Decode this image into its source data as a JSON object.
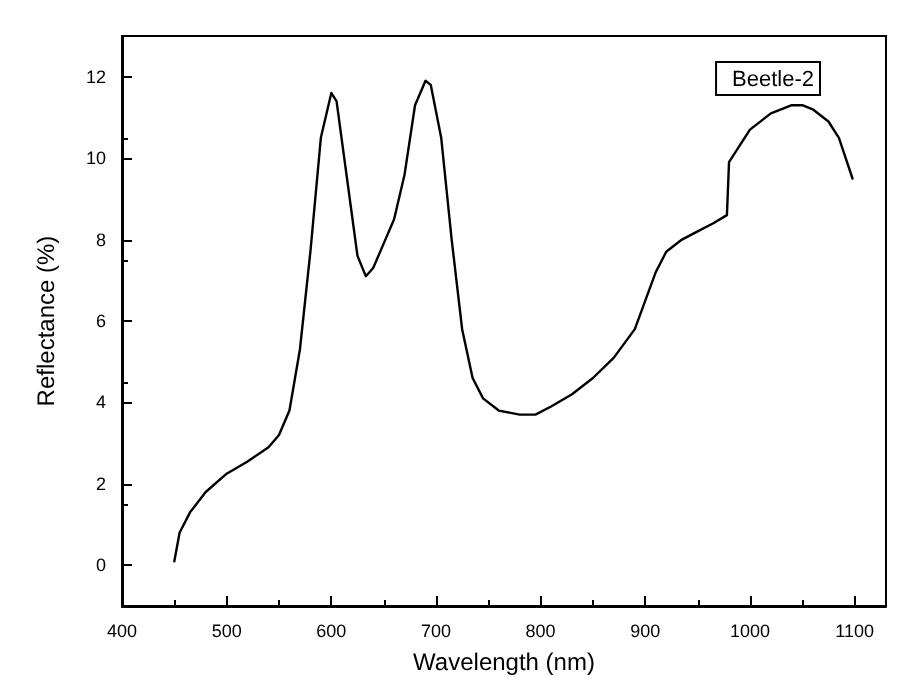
{
  "chart_data": {
    "type": "line",
    "xlabel": "Wavelength (nm)",
    "ylabel": "Reflectance (%)",
    "xlim": [
      400,
      1130
    ],
    "xticks": [
      400,
      500,
      600,
      700,
      800,
      900,
      1000,
      1100
    ],
    "ylim": [
      -1,
      13
    ],
    "yticks": [
      0,
      2,
      4,
      6,
      8,
      10,
      12
    ],
    "grid": false,
    "legend": "top right",
    "marker": "none",
    "line_style": "solid",
    "series": [
      {
        "name": "Beetle-2",
        "color": "#000000",
        "x": [
          450,
          455,
          465,
          480,
          500,
          520,
          540,
          550,
          560,
          570,
          580,
          590,
          600,
          605,
          615,
          625,
          633,
          640,
          650,
          660,
          670,
          680,
          690,
          695,
          705,
          715,
          725,
          735,
          745,
          760,
          780,
          795,
          810,
          830,
          850,
          870,
          890,
          900,
          910,
          920,
          935,
          950,
          965,
          978,
          980,
          990,
          1000,
          1020,
          1040,
          1050,
          1060,
          1075,
          1085,
          1098
        ],
        "values": [
          0.1,
          0.8,
          1.3,
          1.8,
          2.25,
          2.55,
          2.9,
          3.2,
          3.8,
          5.3,
          7.7,
          10.5,
          11.6,
          11.4,
          9.5,
          7.6,
          7.1,
          7.3,
          7.9,
          8.5,
          9.6,
          11.3,
          11.9,
          11.8,
          10.5,
          8.0,
          5.8,
          4.6,
          4.1,
          3.8,
          3.7,
          3.7,
          3.9,
          4.2,
          4.6,
          5.1,
          5.8,
          6.5,
          7.2,
          7.7,
          8.0,
          8.2,
          8.4,
          8.6,
          9.9,
          10.3,
          10.7,
          11.1,
          11.3,
          11.3,
          11.2,
          10.9,
          10.5,
          9.5
        ]
      }
    ]
  }
}
